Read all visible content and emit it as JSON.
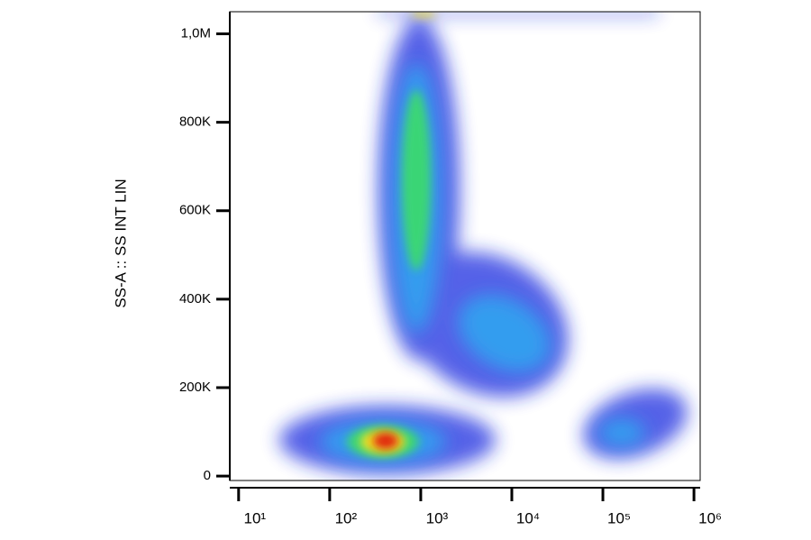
{
  "chart_data": {
    "type": "density",
    "y_label": "SS-A :: SS INT LIN",
    "ylim": [
      -10000,
      1050000
    ],
    "yticks": [
      0,
      {
        "value": 200000,
        "label": "200K"
      },
      {
        "value": 400000,
        "label": "400K"
      },
      {
        "value": 600000,
        "label": "600K"
      },
      {
        "value": 800000,
        "label": "800K"
      },
      {
        "value": 1000000,
        "label": "1,0M"
      }
    ],
    "xlim": [
      8,
      1170000
    ],
    "x_log": true,
    "xticks": [
      {
        "value": 10,
        "label": "10¹"
      },
      {
        "value": 100,
        "label": "10²"
      },
      {
        "value": 1000,
        "label": "10³"
      },
      {
        "value": 10000,
        "label": "10⁴"
      },
      {
        "value": 100000,
        "label": "10⁵"
      },
      {
        "value": 1000000,
        "label": "10⁶"
      }
    ]
  }
}
